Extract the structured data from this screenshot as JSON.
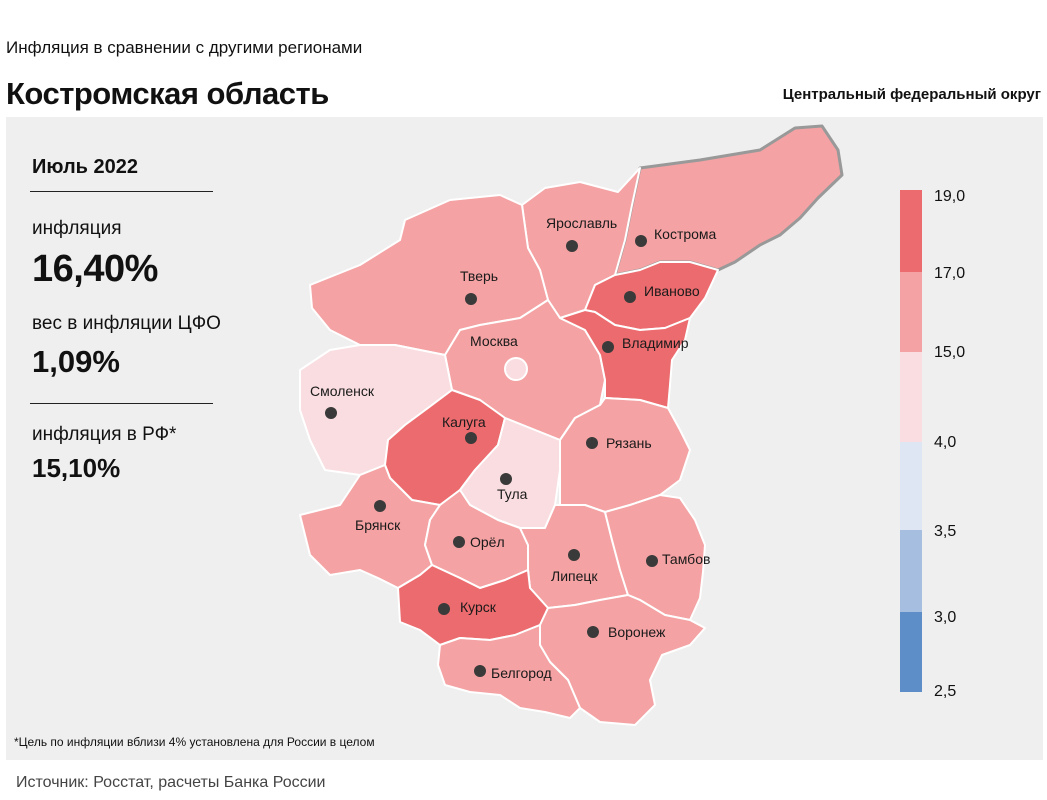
{
  "header": {
    "subtitle": "Инфляция в сравнении с другими регионами",
    "title": "Костромская область",
    "district": "Центральный федеральный округ"
  },
  "stats": {
    "period": "Июль 2022",
    "inflation_label": "инфляция",
    "inflation_value": "16,40%",
    "weight_label": "вес в инфляции ЦФО",
    "weight_value": "1,09%",
    "rf_label": "инфляция в РФ*",
    "rf_value": "15,10%"
  },
  "footnote": "*Цель по инфляции вблизи 4% установлена для России в целом",
  "source": "Источник: Росстат, расчеты Банка России",
  "colors": {
    "cat_17_19": "#ec6b6e",
    "cat_15_17": "#f4a2a3",
    "cat_4_15": "#f9dde0",
    "cat_35_4": "#dfe6f3",
    "cat_3_35": "#a6bfe0",
    "cat_25_3": "#5e8ec7",
    "panel": "#efefef"
  },
  "map": {
    "regions": [
      {
        "name": "Кострома",
        "category": "15-17",
        "highlighted": true
      },
      {
        "name": "Ярославль",
        "category": "15-17"
      },
      {
        "name": "Иваново",
        "category": "17-19"
      },
      {
        "name": "Тверь",
        "category": "15-17"
      },
      {
        "name": "Москва",
        "category": "15-17"
      },
      {
        "name": "Владимир",
        "category": "17-19"
      },
      {
        "name": "Смоленск",
        "category": "4-15"
      },
      {
        "name": "Калуга",
        "category": "17-19"
      },
      {
        "name": "Тула",
        "category": "4-15"
      },
      {
        "name": "Рязань",
        "category": "15-17"
      },
      {
        "name": "Брянск",
        "category": "15-17"
      },
      {
        "name": "Орёл",
        "category": "15-17"
      },
      {
        "name": "Липецк",
        "category": "15-17"
      },
      {
        "name": "Тамбов",
        "category": "15-17"
      },
      {
        "name": "Курск",
        "category": "17-19"
      },
      {
        "name": "Воронеж",
        "category": "15-17"
      },
      {
        "name": "Белгород",
        "category": "15-17"
      }
    ]
  },
  "legend": {
    "ticks": [
      "19,0",
      "17,0",
      "15,0",
      "4,0",
      "3,5",
      "3,0",
      "2,5"
    ]
  }
}
